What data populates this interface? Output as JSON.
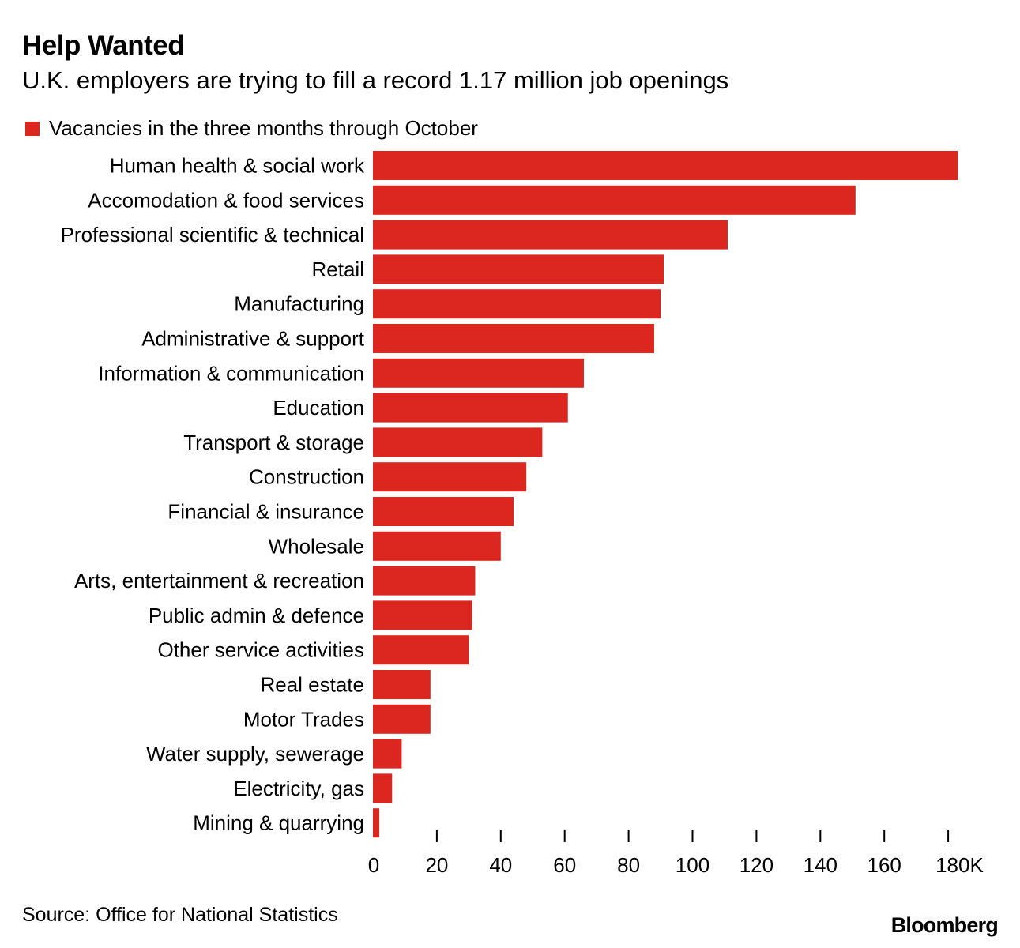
{
  "colors": {
    "bar": "#dc2620",
    "text": "#000000",
    "tick": "#000000"
  },
  "chart_data": {
    "type": "bar",
    "orientation": "horizontal",
    "title": "Help Wanted",
    "subtitle": "U.K. employers are trying to fill a record 1.17 million job openings",
    "legend": [
      "Vacancies in the three months through October"
    ],
    "legend_position": "top-left",
    "categories": [
      "Human health & social work",
      "Accomodation & food services",
      "Professional scientific & technical",
      "Retail",
      "Manufacturing",
      "Administrative & support",
      "Information & communication",
      "Education",
      "Transport & storage",
      "Construction",
      "Financial & insurance",
      "Wholesale",
      "Arts, entertainment & recreation",
      "Public admin & defence",
      "Other service activities",
      "Real estate",
      "Motor Trades",
      "Water supply, sewerage",
      "Electricity, gas",
      "Mining & quarrying"
    ],
    "values": [
      183,
      151,
      111,
      91,
      90,
      88,
      66,
      61,
      53,
      48,
      44,
      40,
      32,
      31,
      30,
      18,
      18,
      9,
      6,
      2
    ],
    "xlim": [
      0,
      190
    ],
    "x_ticks": [
      0,
      20,
      40,
      60,
      80,
      100,
      120,
      140,
      160,
      180
    ],
    "x_tick_labels": [
      "0",
      "20",
      "40",
      "60",
      "80",
      "100",
      "120",
      "140",
      "160",
      "180K"
    ],
    "xlabel": "",
    "ylabel": "",
    "grid": false
  },
  "footer": {
    "source": "Source: Office for National Statistics",
    "brand": "Bloomberg"
  }
}
